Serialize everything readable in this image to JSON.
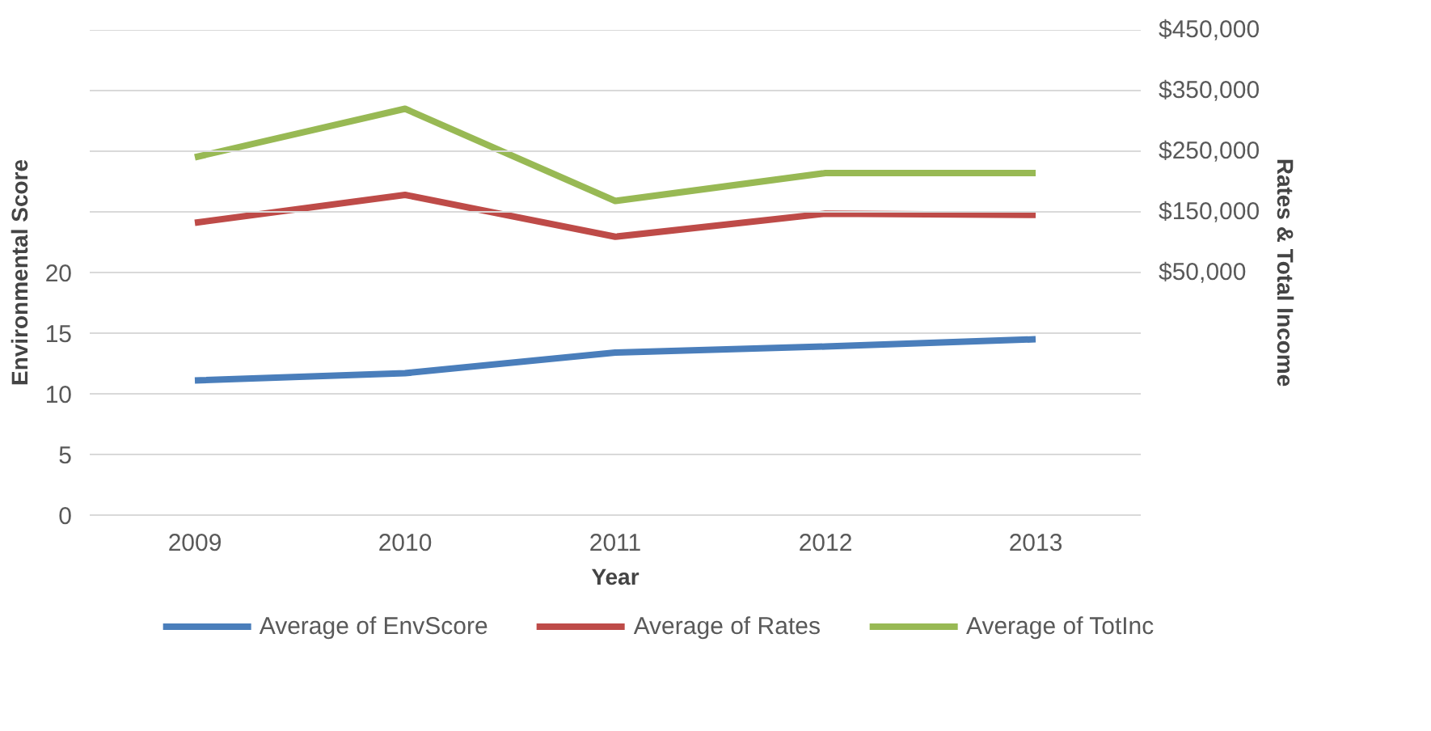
{
  "chart_data": {
    "type": "line",
    "xlabel": "Year",
    "ylabel": "Environmental Score",
    "y2label": "Rates & Total Income",
    "categories": [
      "2009",
      "2010",
      "2011",
      "2012",
      "2013"
    ],
    "ylim": [
      0,
      40
    ],
    "yticks": [
      0,
      5,
      10,
      15,
      20,
      {
        "value": 25,
        "label": null
      },
      {
        "value": 30,
        "label": null
      },
      {
        "value": 35,
        "label": null
      },
      {
        "value": 40,
        "label": null
      }
    ],
    "y2lim": [
      -350000,
      450000
    ],
    "y2ticks": [
      {
        "value": 50000,
        "label": "$50,000"
      },
      {
        "value": 150000,
        "label": "$150,000"
      },
      {
        "value": 250000,
        "label": "$250,000"
      },
      {
        "value": 350000,
        "label": "$350,000"
      },
      {
        "value": 450000,
        "label": "$450,000"
      }
    ],
    "grid": "y",
    "legend": "bottom",
    "line_style": "solid",
    "marker": "none",
    "series": [
      {
        "name": "Average of EnvScore",
        "color": "#4a7ebb",
        "values": [
          11.1,
          11.7,
          13.4,
          13.9,
          14.5
        ]
      },
      {
        "name": "Average of Rates",
        "color": "#be4b48",
        "axis": "y2",
        "values": [
          132000,
          178000,
          109000,
          147000,
          145000
        ]
      },
      {
        "name": "Average of TotInc",
        "color": "#98b954",
        "axis": "y2",
        "values": [
          240000,
          320000,
          168000,
          214000,
          214000
        ]
      }
    ]
  }
}
